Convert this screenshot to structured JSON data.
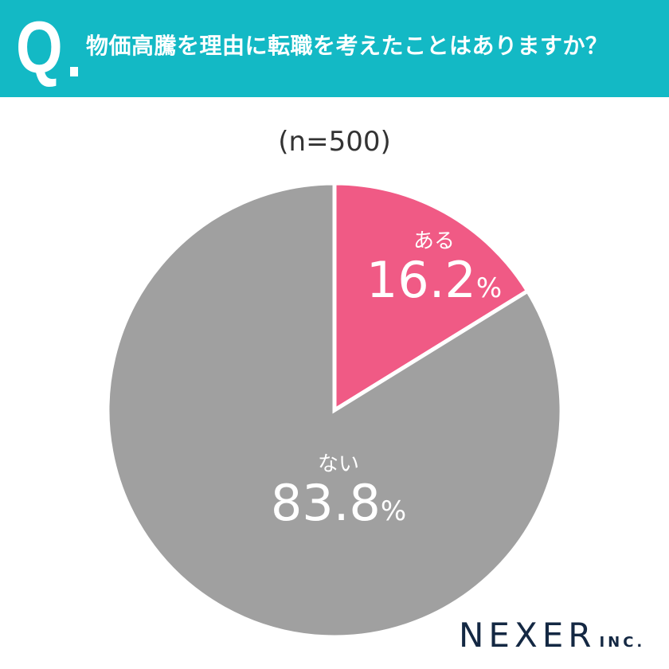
{
  "header": {
    "q_mark": "Q",
    "question": "物価高騰を理由に転職を考えたことはありますか？",
    "background_color": "#13B9C5"
  },
  "sample": {
    "label": "(n=500)"
  },
  "slices": [
    {
      "label": "ある",
      "value_text": "16.2",
      "unit": "%",
      "color": "#F05A85"
    },
    {
      "label": "ない",
      "value_text": "83.8",
      "unit": "%",
      "color": "#A0A0A0"
    }
  ],
  "logo": {
    "name": "NEXER",
    "suffix": "INC."
  },
  "chart_data": {
    "type": "pie",
    "title": "物価高騰を理由に転職を考えたことはありますか？",
    "subtitle": "(n=500)",
    "categories": [
      "ある",
      "ない"
    ],
    "values": [
      16.2,
      83.8
    ],
    "unit": "%",
    "colors": [
      "#F05A85",
      "#A0A0A0"
    ],
    "start_angle": "12 o'clock, clockwise",
    "legend": "none (labels inside slices)"
  }
}
